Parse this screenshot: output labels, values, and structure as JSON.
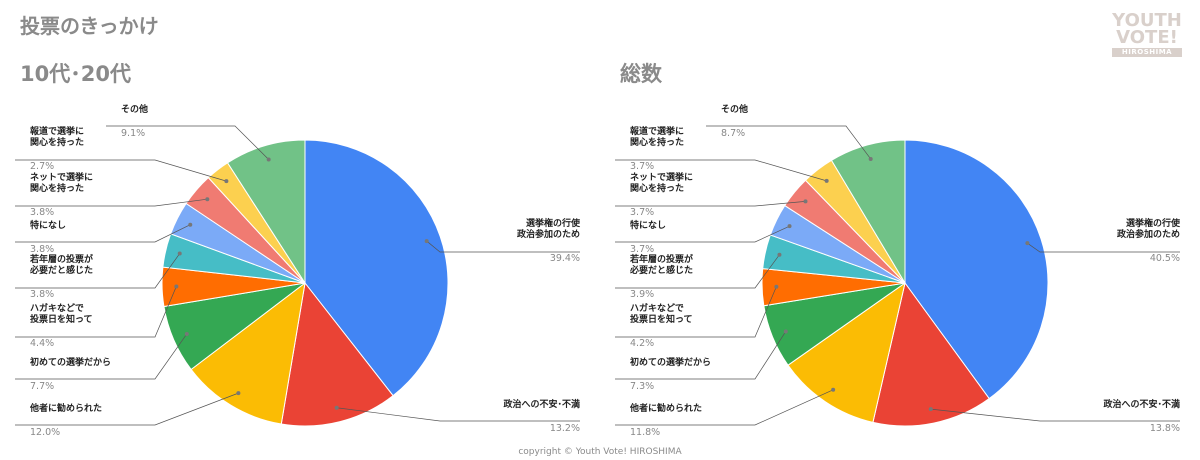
{
  "page": {
    "title": "投票のきっかけ",
    "footer": "copyright © Youth Vote! HIROSHIMA",
    "logo": {
      "line1": "YOUTH",
      "line2": "VOTE!",
      "line3": "HIROSHIMA"
    }
  },
  "colors": {
    "title_gray": "#8a8a8a",
    "slices": [
      "#4285f4",
      "#ea4335",
      "#fbbc04",
      "#34a853",
      "#ff6d01",
      "#46bdc6",
      "#7baaf7",
      "#f07b72",
      "#fcd04f",
      "#71c287"
    ]
  },
  "chart_data": [
    {
      "type": "pie",
      "title": "10代･20代",
      "slices": [
        {
          "label": "選挙権の行使\n政治参加のため",
          "value": 39.4,
          "text": "39.4%"
        },
        {
          "label": "政治への不安･不満",
          "value": 13.2,
          "text": "13.2%"
        },
        {
          "label": "他者に勧められた",
          "value": 12.0,
          "text": "12.0%"
        },
        {
          "label": "初めての選挙だから",
          "value": 7.7,
          "text": "7.7%"
        },
        {
          "label": "ハガキなどで\n投票日を知って",
          "value": 4.4,
          "text": "4.4%"
        },
        {
          "label": "若年層の投票が\n必要だと感じた",
          "value": 3.8,
          "text": "3.8%"
        },
        {
          "label": "特になし",
          "value": 3.8,
          "text": "3.8%"
        },
        {
          "label": "ネットで選挙に\n関心を持った",
          "value": 3.8,
          "text": "3.8%"
        },
        {
          "label": "報道で選挙に\n関心を持った",
          "value": 2.7,
          "text": "2.7%"
        },
        {
          "label": "その他",
          "value": 9.1,
          "text": "9.1%"
        }
      ]
    },
    {
      "type": "pie",
      "title": "総数",
      "slices": [
        {
          "label": "選挙権の行使\n政治参加のため",
          "value": 40.5,
          "text": "40.5%"
        },
        {
          "label": "政治への不安･不満",
          "value": 13.8,
          "text": "13.8%"
        },
        {
          "label": "他者に勧められた",
          "value": 11.8,
          "text": "11.8%"
        },
        {
          "label": "初めての選挙だから",
          "value": 7.3,
          "text": "7.3%"
        },
        {
          "label": "ハガキなどで\n投票日を知って",
          "value": 4.2,
          "text": "4.2%"
        },
        {
          "label": "若年層の投票が\n必要だと感じた",
          "value": 3.9,
          "text": "3.9%"
        },
        {
          "label": "特になし",
          "value": 3.7,
          "text": "3.7%"
        },
        {
          "label": "ネットで選挙に\n関心を持った",
          "value": 3.7,
          "text": "3.7%"
        },
        {
          "label": "報道で選挙に\n関心を持った",
          "value": 3.7,
          "text": "3.7%"
        },
        {
          "label": "その他",
          "value": 8.7,
          "text": "8.7%"
        }
      ]
    }
  ]
}
